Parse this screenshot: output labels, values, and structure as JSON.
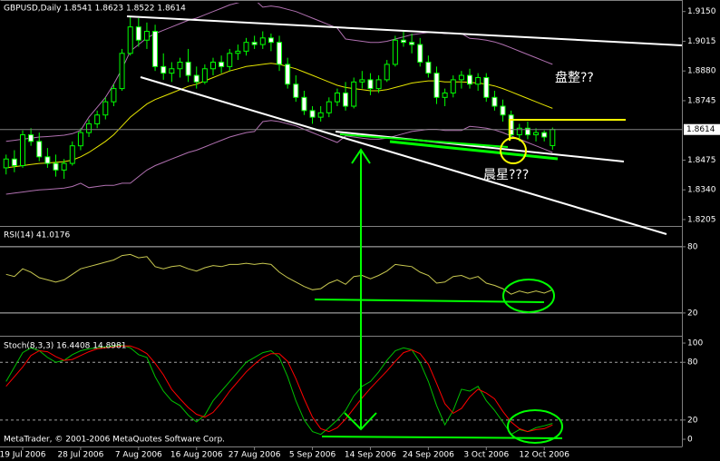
{
  "chart_data": [
    {
      "type": "candlestick",
      "title": "GBPUSD,Daily  1.8541 1.8623 1.8522 1.8614",
      "open": [
        1.844,
        1.848,
        1.845,
        1.859,
        1.856,
        1.849,
        1.846,
        1.843,
        1.846,
        1.854,
        1.86,
        1.864,
        1.868,
        1.874,
        1.88,
        1.896,
        1.908,
        1.902,
        1.906,
        1.89,
        1.887,
        1.889,
        1.892,
        1.886,
        1.883,
        1.889,
        1.892,
        1.89,
        1.896,
        1.897,
        1.901,
        1.9,
        1.903,
        1.901,
        1.891,
        1.882,
        1.876,
        1.87,
        1.867,
        1.869,
        1.874,
        1.878,
        1.872,
        1.883,
        1.884,
        1.88,
        1.884,
        1.891,
        1.902,
        1.901,
        1.9,
        1.892,
        1.887,
        1.876,
        1.878,
        1.884,
        1.886,
        1.882,
        1.885,
        1.876,
        1.872,
        1.868,
        1.859,
        1.862,
        1.859,
        1.86,
        1.8541
      ],
      "high": [
        1.85,
        1.852,
        1.861,
        1.862,
        1.86,
        1.853,
        1.85,
        1.848,
        1.856,
        1.862,
        1.866,
        1.87,
        1.876,
        1.882,
        1.898,
        1.9125,
        1.912,
        1.91,
        1.909,
        1.896,
        1.892,
        1.894,
        1.898,
        1.89,
        1.891,
        1.894,
        1.895,
        1.898,
        1.9,
        1.903,
        1.904,
        1.906,
        1.905,
        1.904,
        1.894,
        1.886,
        1.879,
        1.872,
        1.872,
        1.876,
        1.88,
        1.883,
        1.885,
        1.888,
        1.887,
        1.886,
        1.893,
        1.904,
        1.906,
        1.905,
        1.903,
        1.895,
        1.89,
        1.88,
        1.886,
        1.888,
        1.889,
        1.887,
        1.887,
        1.879,
        1.875,
        1.87,
        1.864,
        1.865,
        1.862,
        1.861,
        1.8623
      ],
      "low": [
        1.841,
        1.842,
        1.844,
        1.854,
        1.847,
        1.844,
        1.84,
        1.839,
        1.845,
        1.852,
        1.858,
        1.862,
        1.866,
        1.872,
        1.879,
        1.895,
        1.899,
        1.898,
        1.888,
        1.884,
        1.883,
        1.885,
        1.883,
        1.88,
        1.882,
        1.886,
        1.887,
        1.888,
        1.893,
        1.895,
        1.898,
        1.898,
        1.897,
        1.888,
        1.88,
        1.874,
        1.868,
        1.864,
        1.865,
        1.867,
        1.872,
        1.87,
        1.871,
        1.88,
        1.877,
        1.878,
        1.883,
        1.89,
        1.899,
        1.896,
        1.89,
        1.885,
        1.873,
        1.872,
        1.876,
        1.88,
        1.88,
        1.879,
        1.874,
        1.87,
        1.865,
        1.857,
        1.856,
        1.857,
        1.856,
        1.856,
        1.8522
      ],
      "close": [
        1.848,
        1.845,
        1.859,
        1.856,
        1.849,
        1.846,
        1.843,
        1.846,
        1.854,
        1.86,
        1.864,
        1.868,
        1.874,
        1.88,
        1.896,
        1.908,
        1.902,
        1.906,
        1.89,
        1.887,
        1.889,
        1.892,
        1.886,
        1.883,
        1.889,
        1.892,
        1.89,
        1.896,
        1.897,
        1.901,
        1.9,
        1.903,
        1.901,
        1.891,
        1.882,
        1.876,
        1.87,
        1.867,
        1.869,
        1.874,
        1.878,
        1.872,
        1.883,
        1.884,
        1.88,
        1.884,
        1.891,
        1.902,
        1.901,
        1.9,
        1.892,
        1.887,
        1.876,
        1.878,
        1.884,
        1.886,
        1.882,
        1.885,
        1.876,
        1.872,
        1.868,
        1.859,
        1.862,
        1.859,
        1.86,
        1.858,
        1.8614
      ],
      "candle_up_color": "#000000",
      "candle_down_color": "#ffffff",
      "candle_outline_color": "#00ff00",
      "lines": [
        {
          "color": "#e6e600",
          "values": [
            1.844,
            1.8445,
            1.845,
            1.8455,
            1.846,
            1.8462,
            1.8465,
            1.8468,
            1.8475,
            1.849,
            1.851,
            1.8535,
            1.856,
            1.859,
            1.863,
            1.867,
            1.87,
            1.873,
            1.875,
            1.8765,
            1.878,
            1.8795,
            1.881,
            1.882,
            1.8835,
            1.885,
            1.8865,
            1.888,
            1.889,
            1.89,
            1.8905,
            1.891,
            1.8915,
            1.891,
            1.89,
            1.889,
            1.8875,
            1.886,
            1.8845,
            1.883,
            1.8815,
            1.8805,
            1.88,
            1.8795,
            1.879,
            1.879,
            1.8795,
            1.8805,
            1.8815,
            1.8825,
            1.883,
            1.8835,
            1.8835,
            1.883,
            1.883,
            1.883,
            1.8828,
            1.8825,
            1.882,
            1.8812,
            1.88,
            1.8785,
            1.877,
            1.8755,
            1.874,
            1.8725,
            1.871
          ]
        },
        {
          "color": "#b070b0",
          "values": [
            1.856,
            1.8565,
            1.857,
            1.8575,
            1.858,
            1.8582,
            1.8585,
            1.8588,
            1.8595,
            1.861,
            1.867,
            1.8715,
            1.876,
            1.882,
            1.889,
            1.897,
            1.9,
            1.903,
            1.905,
            1.9065,
            1.908,
            1.9095,
            1.911,
            1.912,
            1.9135,
            1.915,
            1.9165,
            1.918,
            1.919,
            1.92,
            1.9205,
            1.917,
            1.9175,
            1.917,
            1.916,
            1.915,
            1.9135,
            1.912,
            1.9105,
            1.909,
            1.9075,
            1.9025,
            1.902,
            1.9015,
            1.901,
            1.901,
            1.9015,
            1.9025,
            1.9035,
            1.9045,
            1.905,
            1.9055,
            1.9055,
            1.905,
            1.905,
            1.905,
            1.9028,
            1.9025,
            1.902,
            1.9012,
            1.9,
            1.8985,
            1.897,
            1.8955,
            1.894,
            1.8925,
            1.891
          ]
        },
        {
          "color": "#b070b0",
          "values": [
            1.832,
            1.8325,
            1.833,
            1.8335,
            1.834,
            1.8342,
            1.8345,
            1.8348,
            1.8355,
            1.837,
            1.835,
            1.8355,
            1.836,
            1.836,
            1.837,
            1.837,
            1.84,
            1.843,
            1.845,
            1.8465,
            1.848,
            1.8495,
            1.851,
            1.852,
            1.8535,
            1.855,
            1.8565,
            1.858,
            1.859,
            1.86,
            1.8605,
            1.865,
            1.8655,
            1.865,
            1.864,
            1.863,
            1.8615,
            1.86,
            1.8585,
            1.857,
            1.8555,
            1.8585,
            1.858,
            1.8575,
            1.857,
            1.857,
            1.8575,
            1.8585,
            1.8595,
            1.8605,
            1.861,
            1.8615,
            1.8615,
            1.861,
            1.861,
            1.861,
            1.8628,
            1.8625,
            1.862,
            1.8612,
            1.86,
            1.8585,
            1.857,
            1.8555,
            1.854,
            1.8525,
            1.851
          ]
        }
      ],
      "ylim": [
        1.818,
        1.919
      ],
      "yticks": [
        {
          "value": 1.915,
          "label": "1.9150"
        },
        1.9015,
        {
          "value": 1.888,
          "label": "1.8880"
        },
        1.8745,
        1.8475,
        {
          "value": 1.834,
          "label": "1.8340"
        },
        1.8205
      ],
      "annotations": [
        {
          "text": "盘整??",
          "color": "#e6e600"
        },
        {
          "text": "晨星???",
          "color": "#f0e060"
        }
      ]
    },
    {
      "type": "line",
      "title": "RSI(14) 41.0176",
      "series": [
        {
          "color": "#c8c850",
          "values": [
            55,
            53,
            60,
            57,
            52,
            50,
            48,
            50,
            55,
            60,
            62,
            64,
            66,
            68,
            72,
            73,
            70,
            71,
            62,
            60,
            62,
            63,
            60,
            58,
            61,
            63,
            62,
            64,
            64,
            65,
            64,
            65,
            64,
            57,
            52,
            48,
            44,
            41,
            42,
            47,
            50,
            46,
            53,
            54,
            51,
            54,
            58,
            64,
            63,
            62,
            57,
            54,
            47,
            48,
            53,
            54,
            51,
            53,
            47,
            45,
            42,
            37,
            40,
            38,
            40,
            38,
            41.0176
          ]
        }
      ],
      "ylim": [
        1,
        98
      ],
      "yticks": [
        20,
        80
      ],
      "levels": [
        20,
        80
      ],
      "level_color": "#c0c0c0",
      "level_dash": false
    },
    {
      "type": "line",
      "title": "Stoch(8,3,3) 16.4408 14.8981",
      "series": [
        {
          "color": "#00c000",
          "values": [
            60,
            75,
            90,
            95,
            92,
            85,
            80,
            82,
            88,
            92,
            94,
            95,
            96,
            97,
            98,
            95,
            88,
            85,
            65,
            50,
            40,
            35,
            25,
            18,
            25,
            40,
            50,
            60,
            70,
            80,
            85,
            90,
            92,
            85,
            65,
            40,
            20,
            8,
            5,
            12,
            20,
            30,
            45,
            55,
            60,
            70,
            82,
            92,
            95,
            93,
            80,
            60,
            35,
            15,
            30,
            52,
            50,
            55,
            40,
            30,
            18,
            5,
            10,
            8,
            12,
            14,
            16.4408
          ]
        },
        {
          "color": "#ff0000",
          "values": [
            55,
            65,
            75,
            87,
            92,
            91,
            86,
            82,
            83,
            87,
            91,
            94,
            95,
            96,
            97,
            97,
            94,
            89,
            79,
            67,
            52,
            42,
            33,
            26,
            23,
            28,
            38,
            50,
            60,
            70,
            78,
            85,
            89,
            89,
            81,
            63,
            42,
            23,
            11,
            8,
            12,
            21,
            32,
            43,
            53,
            62,
            71,
            81,
            90,
            93,
            89,
            78,
            58,
            37,
            27,
            32,
            44,
            52,
            48,
            42,
            29,
            18,
            11,
            8,
            10,
            11,
            14.8981
          ]
        }
      ],
      "ylim": [
        -7.5,
        105.7
      ],
      "yticks": [
        0,
        20,
        80,
        100
      ],
      "levels": [
        20,
        80
      ],
      "level_color": "#a0a0a0",
      "level_dash": true,
      "categories": [
        null,
        null,
        "19 Jul 2006",
        null,
        null,
        null,
        null,
        null,
        null,
        "28 Jul 2006",
        null,
        null,
        null,
        null,
        null,
        null,
        "7 Aug 2006",
        null,
        null,
        null,
        null,
        null,
        null,
        "16 Aug 2006",
        null,
        null,
        null,
        null,
        null,
        null,
        "27 Aug 2006",
        null,
        null,
        null,
        null,
        null,
        null,
        "5 Sep 2006",
        null,
        null,
        null,
        null,
        null,
        null,
        "14 Sep 2006",
        null,
        null,
        null,
        null,
        null,
        null,
        "24 Sep 2006",
        null,
        null,
        null,
        null,
        null,
        null,
        "3 Oct 2006",
        null,
        null,
        null,
        null,
        null,
        null,
        "12 Oct 2006",
        null
      ],
      "footer": "MetaTrader, © 2001-2006 MetaQuotes Software Corp."
    }
  ]
}
